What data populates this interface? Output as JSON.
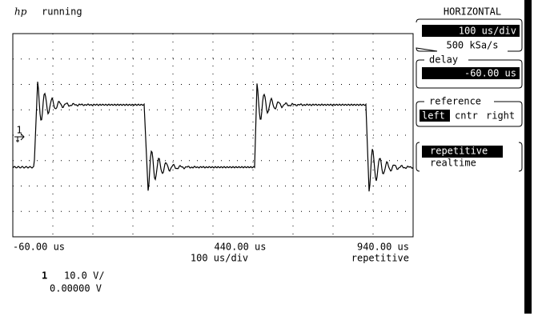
{
  "header": {
    "logo": "hp",
    "status": "running"
  },
  "panel": {
    "title": "HORIZONTAL",
    "timebase": "100 us/div",
    "sample_rate": "500 kSa/s",
    "delay_label": "delay",
    "delay": "-60.00 us",
    "reference_label": "reference",
    "reference_options": [
      "left",
      "cntr",
      "right"
    ],
    "mode_options": [
      "repetitive",
      "realtime"
    ]
  },
  "graticule": {
    "x_labels": [
      "-60.00 us",
      "440.00 us",
      "940.00 us"
    ],
    "timebase": "100 us/div",
    "mode": "repetitive"
  },
  "channel": {
    "number": "1",
    "scale": "10.0 V/",
    "offset": "0.00000 V"
  },
  "marker": "1"
}
